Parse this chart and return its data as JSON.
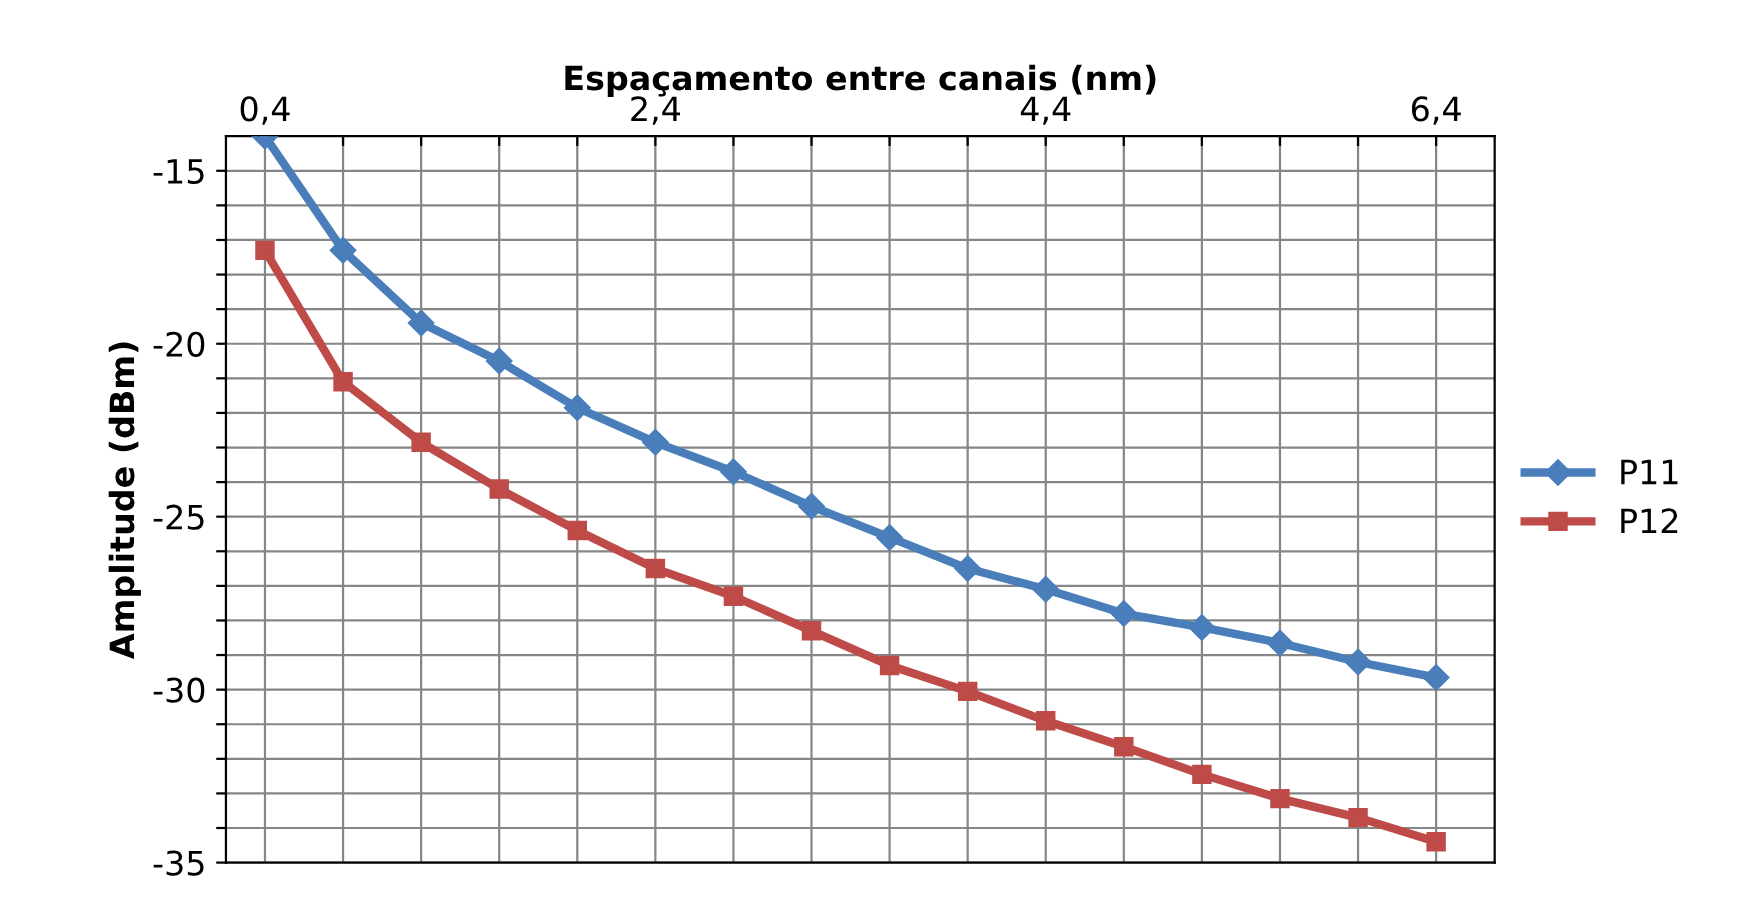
{
  "chart_data": {
    "type": "line",
    "xlabel": "Espaçamento entre canais (nm)",
    "ylabel": "Amplitude (dBm)",
    "x": [
      0.4,
      0.8,
      1.2,
      1.6,
      2.0,
      2.4,
      2.8,
      3.2,
      3.6,
      4.0,
      4.4,
      4.8,
      5.2,
      5.6,
      6.0,
      6.4
    ],
    "series": [
      {
        "name": "P11",
        "color": "#4a7ebb",
        "marker": "diamond",
        "values": [
          -14.0,
          -17.3,
          -19.4,
          -20.5,
          -21.85,
          -22.85,
          -23.7,
          -24.7,
          -25.6,
          -26.5,
          -27.1,
          -27.8,
          -28.2,
          -28.65,
          -29.2,
          -29.65
        ]
      },
      {
        "name": "P12",
        "color": "#be4b48",
        "marker": "square",
        "values": [
          -17.3,
          -21.1,
          -22.85,
          -24.2,
          -25.4,
          -26.5,
          -27.3,
          -28.3,
          -29.3,
          -30.05,
          -30.9,
          -31.65,
          -32.45,
          -33.15,
          -33.7,
          -34.4
        ]
      }
    ],
    "xlim": [
      0.2,
      6.7
    ],
    "ylim": [
      -35,
      -14
    ],
    "xticks": [
      {
        "value": 0.4,
        "label": "0,4"
      },
      {
        "value": 0.8,
        "label": null
      },
      {
        "value": 1.2,
        "label": null
      },
      {
        "value": 1.6,
        "label": null
      },
      {
        "value": 2.0,
        "label": null
      },
      {
        "value": 2.4,
        "label": "2,4"
      },
      {
        "value": 2.8,
        "label": null
      },
      {
        "value": 3.2,
        "label": null
      },
      {
        "value": 3.6,
        "label": null
      },
      {
        "value": 4.0,
        "label": null
      },
      {
        "value": 4.4,
        "label": "4,4"
      },
      {
        "value": 4.8,
        "label": null
      },
      {
        "value": 5.2,
        "label": null
      },
      {
        "value": 5.6,
        "label": null
      },
      {
        "value": 6.0,
        "label": null
      },
      {
        "value": 6.4,
        "label": "6,4"
      }
    ],
    "yticks": [
      -35,
      {
        "value": -34,
        "label": null
      },
      {
        "value": -33,
        "label": null
      },
      {
        "value": -32,
        "label": null
      },
      {
        "value": -31,
        "label": null
      },
      -30,
      {
        "value": -29,
        "label": null
      },
      {
        "value": -28,
        "label": null
      },
      {
        "value": -27,
        "label": null
      },
      {
        "value": -26,
        "label": null
      },
      -25,
      {
        "value": -24,
        "label": null
      },
      {
        "value": -23,
        "label": null
      },
      {
        "value": -22,
        "label": null
      },
      {
        "value": -21,
        "label": null
      },
      -20,
      {
        "value": -19,
        "label": null
      },
      {
        "value": -18,
        "label": null
      },
      {
        "value": -17,
        "label": null
      },
      {
        "value": -16,
        "label": null
      },
      -15
    ],
    "grid": true,
    "legend": "right",
    "line_style": "solid"
  }
}
